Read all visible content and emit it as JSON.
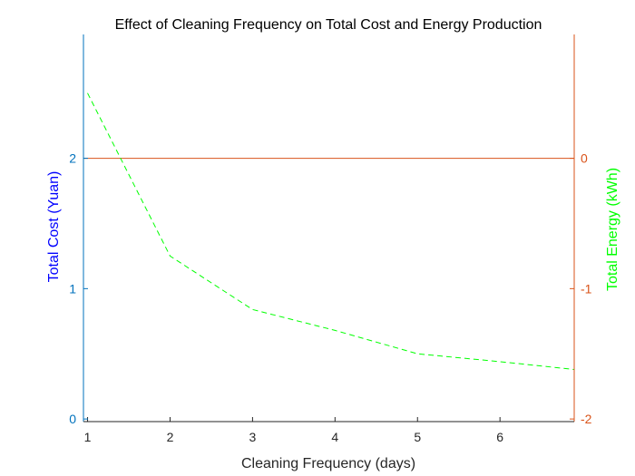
{
  "chart_data": {
    "type": "line",
    "title": "Effect of Cleaning Frequency on Total Cost and Energy Production",
    "xlabel": "Cleaning Frequency (days)",
    "ylabel_left": "Total Cost (Yuan)",
    "ylabel_right": "Total Energy (kWh)",
    "xlim": [
      0.95,
      6.9
    ],
    "ylim_left": [
      -0.02,
      2.95
    ],
    "ylim_right": [
      -2.02,
      0.95
    ],
    "xticks": [
      1,
      2,
      3,
      4,
      5,
      6
    ],
    "yticks_left": [
      0,
      1,
      2
    ],
    "yticks_right": [
      -2,
      -1,
      0
    ],
    "grid": false,
    "colors": {
      "left_axis": "#0072BD",
      "right_axis": "#D95319",
      "left_label": "#0000FF",
      "right_label": "#00FF00",
      "cost_line": "#D95319",
      "energy_line": "#00FF00"
    },
    "series": [
      {
        "axis": "right",
        "style": "solid",
        "x": [
          0.95,
          6.9
        ],
        "y": [
          0,
          0
        ]
      },
      {
        "axis": "left",
        "style": "dashed",
        "x": [
          1,
          2,
          3,
          4,
          5,
          6,
          6.9
        ],
        "y": [
          2.5,
          1.25,
          0.84,
          0.68,
          0.5,
          0.44,
          0.38
        ]
      }
    ]
  }
}
